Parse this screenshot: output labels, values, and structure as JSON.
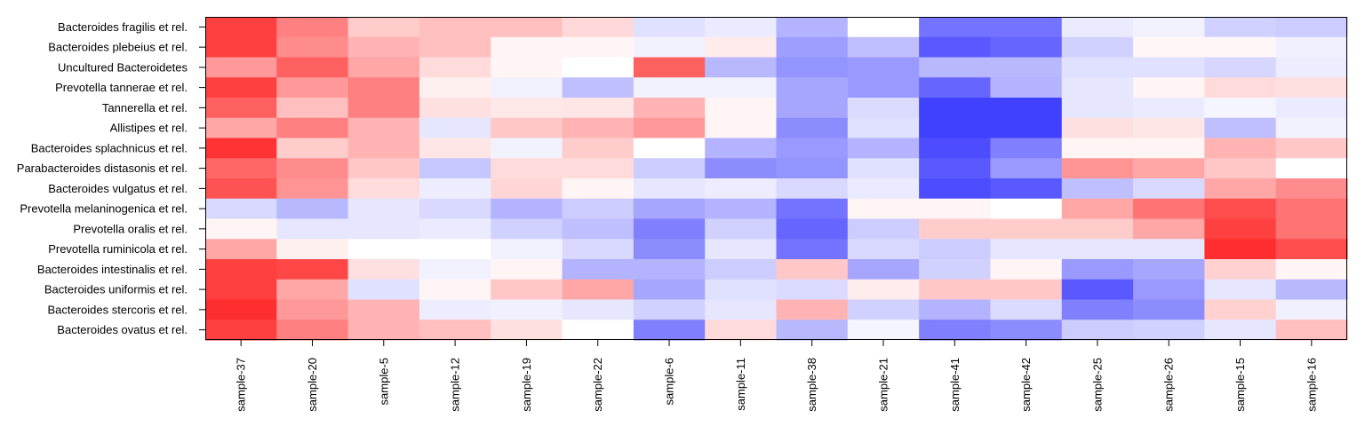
{
  "chart_data": {
    "type": "heatmap",
    "rows": [
      "Bacteroides fragilis et rel.",
      "Bacteroides plebeius et rel.",
      "Uncultured Bacteroidetes",
      "Prevotella tannerae et rel.",
      "Tannerella et rel.",
      "Allistipes et rel.",
      "Bacteroides splachnicus et rel.",
      "Parabacteroides distasonis et rel.",
      "Bacteroides vulgatus et rel.",
      "Prevotella melaninogenica et rel.",
      "Prevotella oralis et rel.",
      "Prevotella ruminicola et rel.",
      "Bacteroides intestinalis et rel.",
      "Bacteroides uniformis et rel.",
      "Bacteroides stercoris et rel.",
      "Bacteroides ovatus et rel."
    ],
    "columns": [
      "sample-37",
      "sample-20",
      "sample-5",
      "sample-12",
      "sample-19",
      "sample-22",
      "sample-6",
      "sample-11",
      "sample-38",
      "sample-21",
      "sample-41",
      "sample-42",
      "sample-25",
      "sample-26",
      "sample-15",
      "sample-16"
    ],
    "values": [
      [
        0.75,
        0.5,
        0.2,
        0.25,
        0.25,
        0.15,
        -0.12,
        -0.08,
        -0.3,
        0.0,
        -0.55,
        -0.55,
        -0.08,
        -0.05,
        -0.18,
        -0.2
      ],
      [
        0.75,
        0.45,
        0.3,
        0.25,
        0.04,
        0.04,
        -0.05,
        0.08,
        -0.38,
        -0.25,
        -0.65,
        -0.6,
        -0.18,
        0.03,
        0.03,
        -0.06
      ],
      [
        0.4,
        0.62,
        0.35,
        0.14,
        0.04,
        0.0,
        0.62,
        -0.28,
        -0.42,
        -0.4,
        -0.28,
        -0.28,
        -0.12,
        -0.12,
        -0.16,
        -0.07
      ],
      [
        0.75,
        0.4,
        0.5,
        0.06,
        -0.05,
        -0.25,
        -0.05,
        -0.05,
        -0.35,
        -0.4,
        -0.6,
        -0.3,
        -0.1,
        0.04,
        0.14,
        0.12
      ],
      [
        0.62,
        0.25,
        0.5,
        0.12,
        0.09,
        0.1,
        0.3,
        0.04,
        -0.35,
        -0.14,
        -0.75,
        -0.75,
        -0.1,
        -0.08,
        -0.04,
        -0.08
      ],
      [
        0.35,
        0.5,
        0.3,
        -0.1,
        0.22,
        0.3,
        0.4,
        0.04,
        -0.45,
        -0.12,
        -0.75,
        -0.75,
        0.12,
        0.1,
        -0.25,
        -0.05
      ],
      [
        0.8,
        0.2,
        0.3,
        0.1,
        -0.05,
        0.2,
        0.0,
        -0.3,
        -0.4,
        -0.3,
        -0.7,
        -0.5,
        0.04,
        0.04,
        0.3,
        0.22
      ],
      [
        0.6,
        0.45,
        0.22,
        -0.22,
        0.14,
        0.14,
        -0.2,
        -0.45,
        -0.42,
        -0.12,
        -0.65,
        -0.4,
        0.42,
        0.35,
        0.22,
        0.0
      ],
      [
        0.68,
        0.42,
        0.14,
        -0.07,
        0.16,
        0.04,
        -0.1,
        -0.07,
        -0.15,
        -0.08,
        -0.7,
        -0.65,
        -0.25,
        -0.15,
        0.35,
        0.45
      ],
      [
        -0.15,
        -0.28,
        -0.1,
        -0.15,
        -0.3,
        -0.2,
        -0.35,
        -0.3,
        -0.55,
        0.04,
        0.04,
        0.0,
        0.35,
        0.55,
        0.7,
        0.55
      ],
      [
        0.04,
        -0.1,
        -0.1,
        -0.08,
        -0.18,
        -0.25,
        -0.5,
        -0.18,
        -0.6,
        -0.2,
        0.2,
        0.2,
        0.2,
        0.35,
        0.75,
        0.55
      ],
      [
        0.35,
        0.06,
        0.0,
        0.0,
        -0.05,
        -0.15,
        -0.45,
        -0.1,
        -0.55,
        -0.15,
        -0.2,
        -0.1,
        -0.1,
        -0.1,
        0.82,
        0.7
      ],
      [
        0.75,
        0.72,
        0.12,
        -0.05,
        0.04,
        -0.3,
        -0.3,
        -0.2,
        0.22,
        -0.35,
        -0.18,
        0.04,
        -0.4,
        -0.35,
        0.18,
        0.04
      ],
      [
        0.75,
        0.35,
        -0.12,
        0.04,
        0.22,
        0.35,
        -0.35,
        -0.12,
        -0.14,
        0.07,
        0.22,
        0.22,
        -0.65,
        -0.4,
        -0.1,
        -0.28
      ],
      [
        0.82,
        0.4,
        0.3,
        -0.07,
        -0.06,
        -0.1,
        -0.18,
        -0.1,
        0.3,
        -0.18,
        -0.3,
        -0.14,
        -0.5,
        -0.45,
        0.18,
        -0.06
      ],
      [
        0.75,
        0.5,
        0.3,
        0.25,
        0.12,
        0.0,
        -0.5,
        0.14,
        -0.28,
        -0.04,
        -0.5,
        -0.45,
        -0.2,
        -0.18,
        -0.1,
        0.25
      ]
    ],
    "colors": {
      "low": "#0000ff",
      "mid": "#ffffff",
      "high": "#ff0000"
    },
    "value_range": [
      -1,
      1
    ],
    "legend": "none"
  }
}
